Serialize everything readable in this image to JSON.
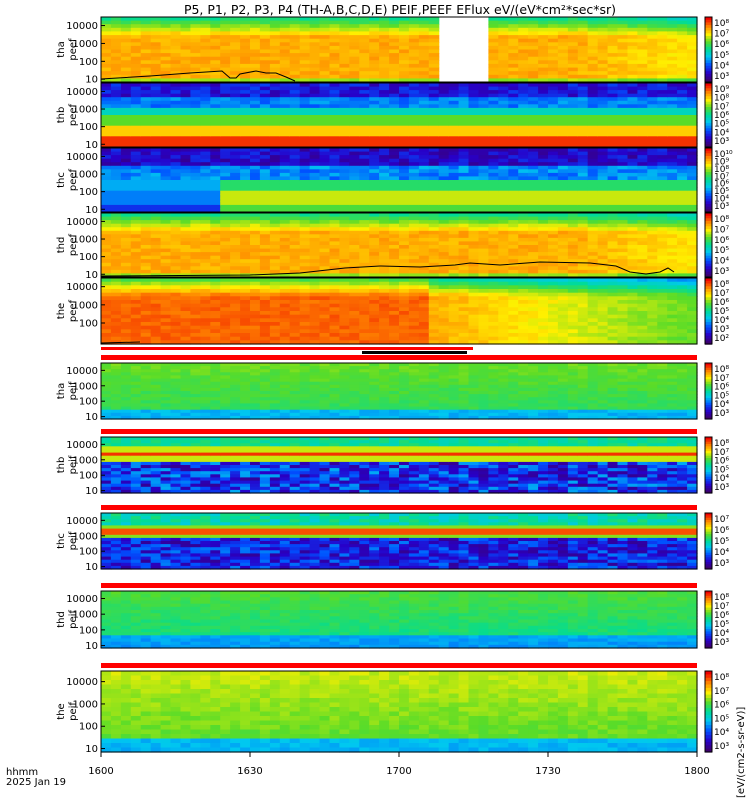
{
  "title": "P5, P1, P2, P3, P4 (TH-A,B,C,D,E) PEIF,PEEF EFlux eV/(eV*cm²*sec*sr)",
  "colorbar_units": "[eV/(cm2-s-sr-eV)]",
  "time_label": "hhmm",
  "date_label": "2025 Jan 19",
  "x_ticks": [
    "1600",
    "1630",
    "1700",
    "1730",
    "1800"
  ],
  "colors": {
    "bar_red": "#ff0000",
    "bar_black": "#000000",
    "spin_line": "#000000"
  },
  "chart_data": {
    "type": "heatmap",
    "x_range": [
      "16:00",
      "18:00"
    ],
    "x_ticks": [
      "1600",
      "1630",
      "1700",
      "1730",
      "1800"
    ],
    "y_scale": "log",
    "y_range_eV": [
      7,
      30000
    ],
    "colormap": "rainbow (purple-blue-cyan-green-yellow-orange-red)",
    "panels": [
      {
        "id": "tha_peef",
        "label_top": "tha",
        "label_bottom": "peef",
        "y_ticks": [
          "10000",
          "1000",
          "100",
          "10"
        ],
        "cb_ticks": [
          "10⁸",
          "10⁷",
          "10⁶",
          "10⁵",
          "10⁴",
          "10³"
        ],
        "data_gap": [
          "17:08",
          "17:17"
        ],
        "spectrum_mode": "red-magnetosheath"
      },
      {
        "id": "thb_peef",
        "label_top": "thb",
        "label_bottom": "peef",
        "y_ticks": [
          "10000",
          "1000",
          "100",
          "10"
        ],
        "cb_ticks": [
          "10⁹",
          "10⁸",
          "10⁷",
          "10⁶",
          "10⁵",
          "10⁴",
          "10³"
        ],
        "spectrum_mode": "banded-solarwind"
      },
      {
        "id": "thc_peef",
        "label_top": "thc",
        "label_bottom": "peef",
        "y_ticks": [
          "10000",
          "1000",
          "100",
          "10"
        ],
        "cb_ticks": [
          "10¹⁰",
          "10⁹",
          "10⁸",
          "10⁷",
          "10⁶",
          "10⁵",
          "10⁴",
          "10³"
        ],
        "spectrum_mode": "banded-solarwind-2"
      },
      {
        "id": "thd_peef",
        "label_top": "thd",
        "label_bottom": "peef",
        "y_ticks": [
          "10000",
          "1000",
          "100",
          "10"
        ],
        "cb_ticks": [
          "10⁸",
          "10⁷",
          "10⁶",
          "10⁵",
          "10⁴",
          "10³"
        ],
        "spectrum_mode": "red-magnetosheath"
      },
      {
        "id": "the_peef",
        "label_top": "the",
        "label_bottom": "peef",
        "y_ticks": [
          "10000",
          "1000",
          "100"
        ],
        "cb_ticks": [
          "10⁸",
          "10⁷",
          "10⁶",
          "10⁵",
          "10⁴",
          "10³",
          "10²"
        ],
        "spectrum_mode": "red-then-decay"
      },
      {
        "id": "tha_peif",
        "label_top": "tha",
        "label_bottom": "peif",
        "y_ticks": [
          "10000",
          "1000",
          "100",
          "10"
        ],
        "cb_ticks": [
          "10⁸",
          "10⁷",
          "10⁶",
          "10⁵",
          "10⁴",
          "10³"
        ],
        "spectrum_mode": "green-ion"
      },
      {
        "id": "thb_peif",
        "label_top": "thb",
        "label_bottom": "peif",
        "y_ticks": [
          "10000",
          "1000",
          "100",
          "10"
        ],
        "cb_ticks": [
          "10⁸",
          "10⁷",
          "10⁶",
          "10⁵",
          "10⁴",
          "10³"
        ],
        "spectrum_mode": "ion-beam"
      },
      {
        "id": "thc_peif",
        "label_top": "thc",
        "label_bottom": "peif",
        "y_ticks": [
          "10000",
          "1000",
          "100",
          "10"
        ],
        "cb_ticks": [
          "10⁷",
          "10⁶",
          "10⁵",
          "10⁴",
          "10³"
        ],
        "spectrum_mode": "ion-beam-2"
      },
      {
        "id": "thd_peif",
        "label_top": "thd",
        "label_bottom": "peif",
        "y_ticks": [
          "10000",
          "1000",
          "100",
          "10"
        ],
        "cb_ticks": [
          "10⁸",
          "10⁷",
          "10⁶",
          "10⁵",
          "10⁴",
          "10³"
        ],
        "spectrum_mode": "green-ion-2"
      },
      {
        "id": "the_peif",
        "label_top": "the",
        "label_bottom": "peif",
        "y_ticks": [
          "10000",
          "1000",
          "100",
          "10"
        ],
        "cb_ticks": [
          "10⁸",
          "10⁷",
          "10⁶",
          "10⁵",
          "10⁴",
          "10³"
        ],
        "spectrum_mode": "green-ion-3"
      }
    ]
  }
}
